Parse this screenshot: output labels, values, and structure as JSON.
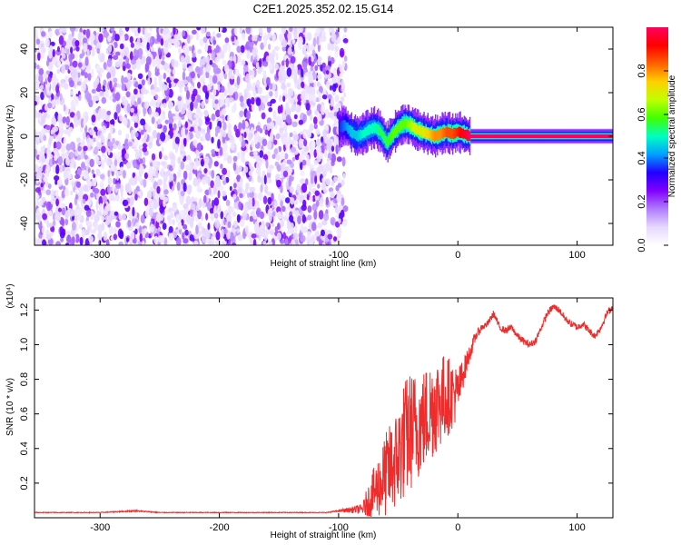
{
  "figure": {
    "title": "C2E1.2025.352.02.15.G14"
  },
  "chart_data": [
    {
      "type": "heatmap",
      "xlabel": "Height of straight line (km)",
      "ylabel": "Frequency (Hz)",
      "xlim": [
        -355,
        130
      ],
      "ylim": [
        -50,
        50
      ],
      "xticks": [
        -300,
        -200,
        -100,
        0,
        100
      ],
      "yticks": [
        -40,
        -20,
        0,
        20,
        40
      ],
      "colorbar": {
        "label": "Normalized spectral amplitude",
        "range": [
          0.0,
          1.0
        ],
        "ticks": [
          "0.0",
          "0.2",
          "0.4",
          "0.6",
          "0.8"
        ],
        "colors": [
          "#ffffff",
          "#e6d8ff",
          "#b07bff",
          "#8000ff",
          "#2000ff",
          "#00a0ff",
          "#00ffc0",
          "#40ff00",
          "#c0ff00",
          "#ffd000",
          "#ff6000",
          "#ff0000",
          "#ff0060"
        ]
      },
      "noise_region": {
        "x_range": [
          -355,
          -94
        ],
        "y_range": [
          -50,
          50
        ],
        "amplitude_range": [
          0.0,
          0.15
        ]
      },
      "signal_track": {
        "x": [
          -100,
          -95,
          -90,
          -85,
          -80,
          -75,
          -70,
          -65,
          -60,
          -55,
          -50,
          -45,
          -40,
          -35,
          -30,
          -25,
          -20,
          -15,
          -10,
          -5,
          0,
          5,
          10,
          130
        ],
        "y": [
          4,
          5,
          2,
          0,
          1,
          3,
          4,
          2,
          -3,
          1,
          4,
          6,
          5,
          3,
          2,
          1,
          0,
          1,
          2,
          1,
          2,
          1,
          0,
          0
        ],
        "peak_amplitude": [
          0.35,
          0.4,
          0.45,
          0.45,
          0.5,
          0.5,
          0.5,
          0.55,
          0.55,
          0.6,
          0.6,
          0.6,
          0.65,
          0.7,
          0.7,
          0.75,
          0.8,
          0.8,
          0.85,
          0.85,
          0.9,
          0.95,
          1.0,
          1.0
        ]
      }
    },
    {
      "type": "line",
      "xlabel": "Height of straight line (km)",
      "ylabel": "SNR (10 * v/v)",
      "y_multiplier": "(x10⁴)",
      "xlim": [
        -355,
        130
      ],
      "ylim": [
        0,
        1.27
      ],
      "xticks": [
        -300,
        -200,
        -100,
        0,
        100
      ],
      "yticks": [
        "0.2",
        "0.4",
        "0.6",
        "0.8",
        "1.0",
        "1.2"
      ],
      "series": [
        {
          "color": "#ee2c2c",
          "x": [
            -355,
            -300,
            -270,
            -250,
            -200,
            -150,
            -110,
            -100,
            -80,
            -75,
            -70,
            -60,
            -50,
            -45,
            -40,
            -30,
            -20,
            -10,
            0,
            5,
            10,
            15,
            20,
            25,
            30,
            35,
            40,
            45,
            50,
            55,
            60,
            65,
            70,
            75,
            80,
            85,
            90,
            95,
            100,
            105,
            110,
            115,
            120,
            125,
            130
          ],
          "y": [
            0.03,
            0.03,
            0.04,
            0.03,
            0.03,
            0.03,
            0.03,
            0.04,
            0.05,
            0.1,
            0.15,
            0.25,
            0.35,
            0.45,
            0.5,
            0.55,
            0.65,
            0.7,
            0.72,
            0.85,
            0.95,
            1.05,
            1.1,
            1.12,
            1.18,
            1.1,
            1.08,
            1.1,
            1.05,
            1.02,
            1.0,
            1.02,
            1.1,
            1.18,
            1.22,
            1.2,
            1.15,
            1.12,
            1.1,
            1.12,
            1.08,
            1.05,
            1.1,
            1.18,
            1.22
          ],
          "noise_amplitude": [
            0.002,
            0.002,
            0.004,
            0.002,
            0.002,
            0.002,
            0.002,
            0.005,
            0.03,
            0.1,
            0.15,
            0.25,
            0.3,
            0.35,
            0.35,
            0.3,
            0.3,
            0.25,
            0.15,
            0.08,
            0.05,
            0.03,
            0.02,
            0.02,
            0.02,
            0.02,
            0.02,
            0.02,
            0.02,
            0.02,
            0.02,
            0.02,
            0.02,
            0.02,
            0.02,
            0.02,
            0.02,
            0.02,
            0.02,
            0.02,
            0.02,
            0.02,
            0.02,
            0.02,
            0.02
          ]
        }
      ]
    }
  ]
}
